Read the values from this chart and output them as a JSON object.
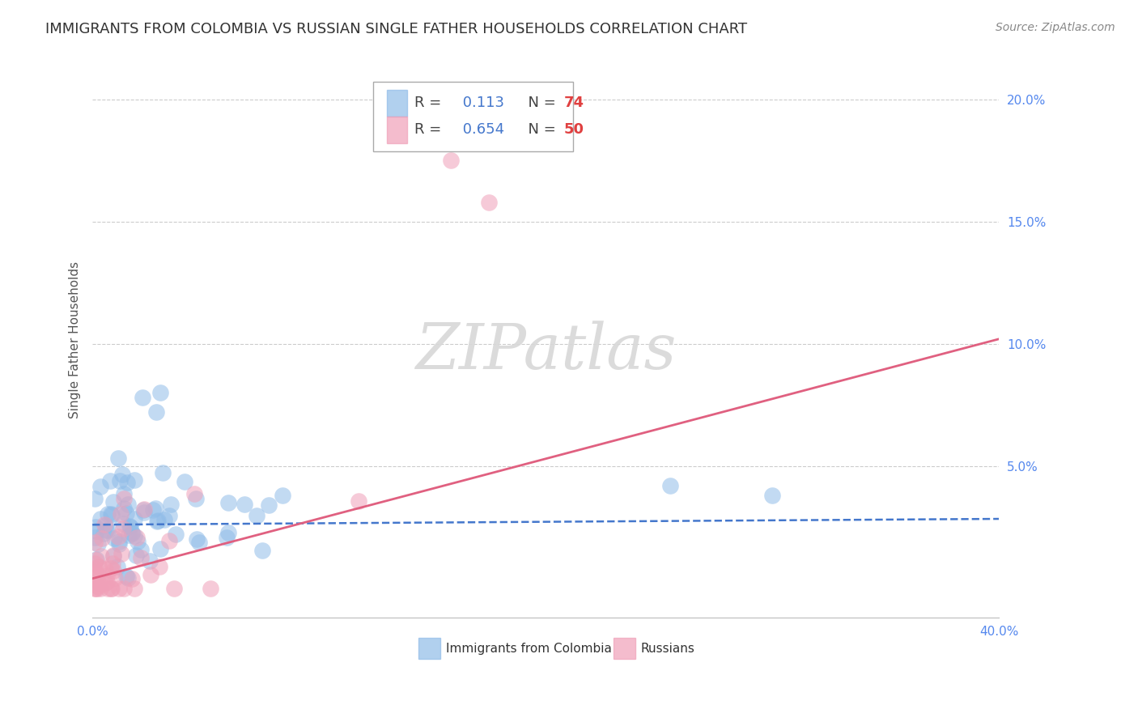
{
  "title": "IMMIGRANTS FROM COLOMBIA VS RUSSIAN SINGLE FATHER HOUSEHOLDS CORRELATION CHART",
  "source": "Source: ZipAtlas.com",
  "ylabel": "Single Father Households",
  "ytick_values": [
    0.0,
    0.05,
    0.1,
    0.15,
    0.2
  ],
  "ytick_labels": [
    "",
    "5.0%",
    "10.0%",
    "15.0%",
    "20.0%"
  ],
  "xlim": [
    0.0,
    0.4
  ],
  "ylim": [
    -0.012,
    0.215
  ],
  "colombia_color": "#90bce8",
  "russia_color": "#f0a0b8",
  "colombia_line_color": "#4477cc",
  "russia_line_color": "#e06080",
  "watermark": "ZIPatlas",
  "colombia_R": "0.113",
  "colombia_N": "74",
  "russia_R": "0.654",
  "russia_N": "50",
  "col_slope": 0.006,
  "col_intercept": 0.026,
  "rus_slope": 0.245,
  "rus_intercept": 0.004,
  "legend_R_color": "#4477cc",
  "legend_N_color": "#e04040",
  "text_color": "#333333",
  "source_color": "#888888",
  "title_fontsize": 13,
  "axis_fontsize": 11,
  "legend_fontsize": 13
}
